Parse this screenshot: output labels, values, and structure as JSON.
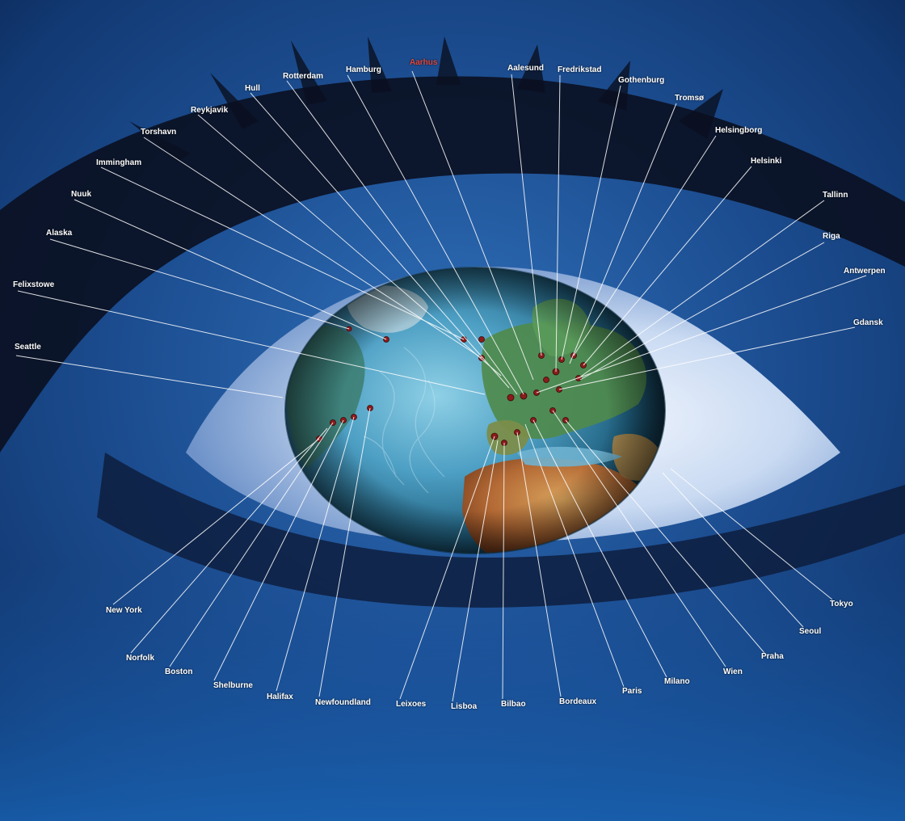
{
  "image": {
    "subject": "eye-with-globe-iris",
    "accent_color": "#d23b3b",
    "label_color": "#ffffff",
    "highlight_color": "#e0463c"
  },
  "labels": {
    "aarhus": "Aarhus",
    "hamburg": "Hamburg",
    "rotterdam": "Rotterdam",
    "hull": "Hull",
    "reykjavik": "Reykjavik",
    "torshavn": "Torshavn",
    "immingham": "Immingham",
    "nuuk": "Nuuk",
    "alaska": "Alaska",
    "felixstowe": "Felixstowe",
    "seattle": "Seattle",
    "aalesund": "Aalesund",
    "fredrikstad": "Fredrikstad",
    "gothenburg": "Gothenburg",
    "tromso": "Tromsø",
    "helsingborg": "Helsingborg",
    "helsinki": "Helsinki",
    "tallinn": "Tallinn",
    "riga": "Riga",
    "antwerpen": "Antwerpen",
    "gdansk": "Gdansk",
    "new_york": "New York",
    "norfolk": "Norfolk",
    "boston": "Boston",
    "shelburne": "Shelburne",
    "halifax": "Halifax",
    "newfoundland": "Newfoundland",
    "leixoes": "Leixoes",
    "lisboa": "Lisboa",
    "bilbao": "Bilbao",
    "bordeaux": "Bordeaux",
    "paris": "Paris",
    "milano": "Milano",
    "wien": "Wien",
    "praha": "Praha",
    "seoul": "Seoul",
    "tokyo": "Tokyo"
  }
}
